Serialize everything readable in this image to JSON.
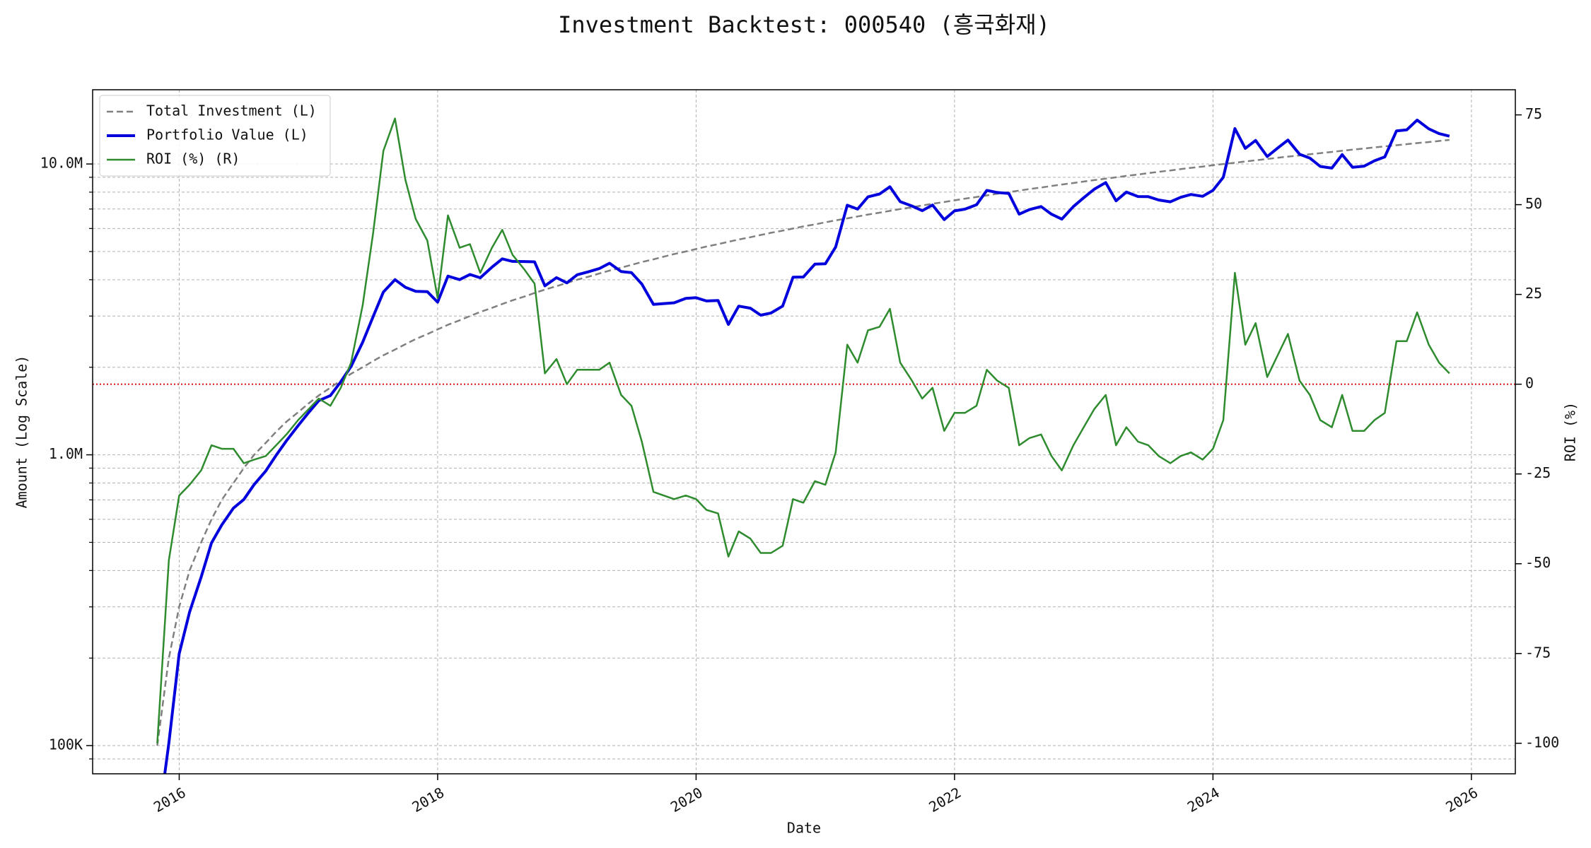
{
  "chart_data": {
    "type": "line",
    "title": "Investment Backtest: 000540 (흥국화재)",
    "x_label": "Date",
    "y_label": "Amount (Log Scale)",
    "y2_label": "ROI (%)",
    "x": [
      2015.83,
      2015.92,
      2016.0,
      2016.08,
      2016.17,
      2016.25,
      2016.33,
      2016.42,
      2016.5,
      2016.58,
      2016.67,
      2016.75,
      2016.83,
      2016.92,
      2017.0,
      2017.08,
      2017.17,
      2017.25,
      2017.33,
      2017.42,
      2017.5,
      2017.58,
      2017.67,
      2017.75,
      2017.83,
      2017.92,
      2018.0,
      2018.08,
      2018.17,
      2018.25,
      2018.33,
      2018.42,
      2018.5,
      2018.58,
      2018.67,
      2018.75,
      2018.83,
      2018.92,
      2019.0,
      2019.08,
      2019.17,
      2019.25,
      2019.33,
      2019.42,
      2019.5,
      2019.58,
      2019.67,
      2019.75,
      2019.83,
      2019.92,
      2020.0,
      2020.08,
      2020.17,
      2020.25,
      2020.33,
      2020.42,
      2020.5,
      2020.58,
      2020.67,
      2020.75,
      2020.83,
      2020.92,
      2021.0,
      2021.08,
      2021.17,
      2021.25,
      2021.33,
      2021.42,
      2021.5,
      2021.58,
      2021.67,
      2021.75,
      2021.83,
      2021.92,
      2022.0,
      2022.08,
      2022.17,
      2022.25,
      2022.33,
      2022.42,
      2022.5,
      2022.58,
      2022.67,
      2022.75,
      2022.83,
      2022.92,
      2023.0,
      2023.08,
      2023.17,
      2023.25,
      2023.33,
      2023.42,
      2023.5,
      2023.58,
      2023.67,
      2023.75,
      2023.83,
      2023.92,
      2024.0,
      2024.08,
      2024.17,
      2024.25,
      2024.33,
      2024.42,
      2024.5,
      2024.58,
      2024.67,
      2024.75,
      2024.83,
      2024.92,
      2025.0,
      2025.08,
      2025.17,
      2025.25,
      2025.33,
      2025.42,
      2025.5,
      2025.58,
      2025.67,
      2025.75,
      2025.83
    ],
    "series": [
      {
        "name": "Total Investment (L)",
        "color": "#808080",
        "linestyle": "dashed",
        "linewidth": 2.5,
        "axis": "y",
        "values": [
          100000,
          200000,
          300000,
          400000,
          500000,
          600000,
          700000,
          800000,
          900000,
          1000000,
          1100000,
          1200000,
          1300000,
          1400000,
          1500000,
          1600000,
          1700000,
          1800000,
          1900000,
          2000000,
          2100000,
          2200000,
          2300000,
          2400000,
          2500000,
          2600000,
          2700000,
          2800000,
          2900000,
          3000000,
          3100000,
          3200000,
          3300000,
          3400000,
          3500000,
          3600000,
          3700000,
          3800000,
          3900000,
          4000000,
          4100000,
          4200000,
          4300000,
          4400000,
          4500000,
          4600000,
          4700000,
          4800000,
          4900000,
          5000000,
          5100000,
          5200000,
          5300000,
          5400000,
          5500000,
          5600000,
          5700000,
          5800000,
          5900000,
          6000000,
          6100000,
          6200000,
          6300000,
          6400000,
          6500000,
          6600000,
          6700000,
          6800000,
          6900000,
          7000000,
          7100000,
          7200000,
          7300000,
          7400000,
          7500000,
          7600000,
          7700000,
          7800000,
          7900000,
          8000000,
          8100000,
          8200000,
          8300000,
          8400000,
          8500000,
          8600000,
          8700000,
          8800000,
          8900000,
          9000000,
          9100000,
          9200000,
          9300000,
          9400000,
          9500000,
          9600000,
          9700000,
          9800000,
          9900000,
          10000000,
          10100000,
          10200000,
          10300000,
          10400000,
          10500000,
          10600000,
          10700000,
          10800000,
          10900000,
          11000000,
          11100000,
          11200000,
          11300000,
          11400000,
          11500000,
          11600000,
          11700000,
          11800000,
          11900000,
          12000000,
          12100000
        ]
      },
      {
        "name": "Portfolio Value (L)",
        "color": "#0000dd",
        "linestyle": "solid",
        "linewidth": 4,
        "axis": "y",
        "values": [
          0,
          102000,
          207000,
          288000,
          380000,
          498000,
          574000,
          656000,
          702000,
          790000,
          880000,
          996000,
          1118000,
          1260000,
          1395000,
          1536000,
          1598000,
          1782000,
          2014000,
          2440000,
          2982000,
          3630000,
          4002000,
          3768000,
          3650000,
          3640000,
          3348000,
          4116000,
          4002000,
          4170000,
          4061000,
          4416000,
          4719000,
          4624000,
          4620000,
          4608000,
          3811000,
          4066000,
          3900000,
          4160000,
          4264000,
          4368000,
          4558000,
          4268000,
          4230000,
          3864000,
          3290000,
          3312000,
          3332000,
          3450000,
          3468000,
          3380000,
          3392000,
          2808000,
          3245000,
          3192000,
          3021000,
          3074000,
          3245000,
          4080000,
          4087000,
          4526000,
          4536000,
          5184000,
          7215000,
          6996000,
          7705000,
          7888000,
          8349000,
          7420000,
          7171000,
          6912000,
          7227000,
          6438000,
          6900000,
          6992000,
          7238000,
          8112000,
          7979000,
          7920000,
          6723000,
          6970000,
          7138000,
          6720000,
          6460000,
          7138000,
          7656000,
          8184000,
          8633000,
          7470000,
          8008000,
          7728000,
          7719000,
          7520000,
          7410000,
          7680000,
          7857000,
          7742000,
          8118000,
          9000000,
          13231000,
          11322000,
          12051000,
          10608000,
          11340000,
          12084000,
          10807000,
          10476000,
          9810000,
          9680000,
          10767000,
          9744000,
          9831000,
          10260000,
          10580000,
          12992000,
          13104000,
          14160000,
          13209000,
          12720000,
          12463000
        ]
      },
      {
        "name": "ROI (%) (R)",
        "color": "#2e8b2e",
        "linestyle": "solid",
        "linewidth": 2.5,
        "axis": "y2",
        "values": [
          -100,
          -49,
          -31,
          -28,
          -24,
          -17,
          -18,
          -18,
          -22,
          -21,
          -20,
          -17,
          -14,
          -10,
          -7,
          -4,
          -6,
          -1,
          6,
          22,
          42,
          65,
          74,
          57,
          46,
          40,
          24,
          47,
          38,
          39,
          31,
          38,
          43,
          36,
          32,
          28,
          3,
          7,
          0,
          4,
          4,
          4,
          6,
          -3,
          -6,
          -16,
          -30,
          -31,
          -32,
          -31,
          -32,
          -35,
          -36,
          -48,
          -41,
          -43,
          -47,
          -47,
          -45,
          -32,
          -33,
          -27,
          -28,
          -19,
          11,
          6,
          15,
          16,
          21,
          6,
          1,
          -4,
          -1,
          -13,
          -8,
          -8,
          -6,
          4,
          1,
          -1,
          -17,
          -15,
          -14,
          -20,
          -24,
          -17,
          -12,
          -7,
          -3,
          -17,
          -12,
          -16,
          -17,
          -20,
          -22,
          -20,
          -19,
          -21,
          -18,
          -10,
          31,
          11,
          17,
          2,
          8,
          14,
          1,
          -3,
          -10,
          -12,
          -3,
          -13,
          -13,
          -10,
          -8,
          12,
          12,
          20,
          11,
          6,
          3
        ]
      }
    ],
    "xlim": [
      2015.33,
      2026.34
    ],
    "xticks": [
      2016,
      2018,
      2020,
      2022,
      2024,
      2026
    ],
    "ylog": true,
    "ylim": [
      80000,
      18000000
    ],
    "yticks": [
      {
        "value": 100000,
        "label": "100K"
      },
      {
        "value": 1000000,
        "label": "1.0M"
      },
      {
        "value": 10000000,
        "label": "10.0M"
      }
    ],
    "yminorticks": [
      90000,
      200000,
      300000,
      400000,
      500000,
      600000,
      700000,
      800000,
      900000,
      2000000,
      3000000,
      4000000,
      5000000,
      6000000,
      7000000,
      8000000,
      9000000
    ],
    "y2lim": [
      -108.5,
      82
    ],
    "y2ticks": [
      -100,
      -75,
      -50,
      -25,
      0,
      25,
      50,
      75
    ],
    "y_color": "#0000dd",
    "y2_color": "#2e8b2e",
    "reference_line": {
      "axis": "y2",
      "value": 0,
      "color": "#dd0000"
    },
    "grid": true,
    "legend": "upper left"
  }
}
